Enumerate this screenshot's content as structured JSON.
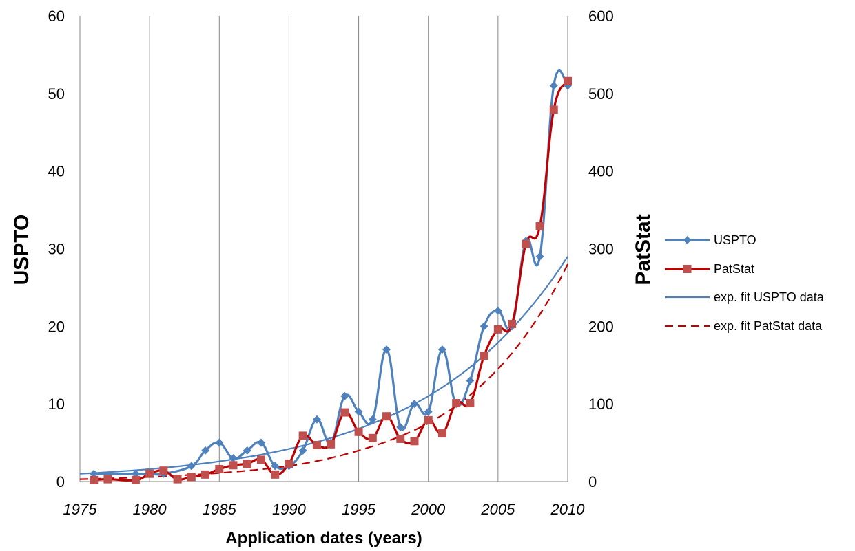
{
  "chart_data": {
    "type": "line",
    "xlabel": "Application dates (years)",
    "ylabel": "USPTO",
    "y2label": "PatStat",
    "xlim": [
      1975,
      2010
    ],
    "ylim": [
      0,
      60
    ],
    "y2lim": [
      0,
      600
    ],
    "x_ticks": [
      1975,
      1980,
      1985,
      1990,
      1995,
      2000,
      2005,
      2010
    ],
    "y_ticks": [
      0,
      10,
      20,
      30,
      40,
      50,
      60
    ],
    "y2_ticks": [
      0,
      100,
      200,
      300,
      400,
      500,
      600
    ],
    "grid": "vertical",
    "legend_position": "right",
    "series": [
      {
        "name": "USPTO",
        "axis": "left",
        "color": "#4F81BD",
        "marker": "diamond",
        "smooth": true,
        "x": [
          1976,
          1979,
          1980,
          1981,
          1983,
          1984,
          1985,
          1986,
          1987,
          1988,
          1989,
          1990,
          1991,
          1992,
          1993,
          1994,
          1995,
          1996,
          1997,
          1998,
          1999,
          2000,
          2001,
          2002,
          2003,
          2004,
          2005,
          2006,
          2007,
          2008,
          2009,
          2010
        ],
        "y": [
          1,
          1,
          1,
          1,
          2,
          4,
          5,
          3,
          4,
          5,
          2,
          2,
          4,
          8,
          5,
          11,
          9,
          8,
          17,
          7,
          10,
          9,
          17,
          10,
          13,
          20,
          22,
          20,
          31,
          29,
          51,
          51
        ]
      },
      {
        "name": "PatStat",
        "axis": "right",
        "color": "#C0504D",
        "line_color": "#C00000",
        "marker": "square",
        "smooth": true,
        "x": [
          1976,
          1977,
          1979,
          1980,
          1981,
          1982,
          1983,
          1984,
          1985,
          1986,
          1987,
          1988,
          1989,
          1990,
          1991,
          1992,
          1993,
          1994,
          1995,
          1996,
          1997,
          1998,
          1999,
          2000,
          2001,
          2002,
          2003,
          2004,
          2005,
          2006,
          2007,
          2008,
          2009,
          2010
        ],
        "y": [
          2,
          3,
          2,
          10,
          14,
          3,
          6,
          9,
          16,
          21,
          23,
          28,
          9,
          23,
          59,
          47,
          48,
          89,
          64,
          56,
          84,
          55,
          52,
          79,
          62,
          101,
          101,
          162,
          196,
          203,
          306,
          329,
          479,
          516
        ]
      },
      {
        "name": "exp. fit USPTO data",
        "axis": "left",
        "color": "#4F81BD",
        "style": "solid",
        "x": [
          1975,
          1980,
          1985,
          1990,
          1995,
          2000,
          2005,
          2010
        ],
        "y": [
          1.0,
          1.6,
          2.6,
          4.2,
          6.8,
          11.0,
          17.9,
          29.0
        ]
      },
      {
        "name": "exp. fit PatStat data",
        "axis": "right",
        "color": "#C00000",
        "style": "dashed",
        "x": [
          1975,
          1980,
          1985,
          1990,
          1995,
          2000,
          2005,
          2010
        ],
        "y": [
          3,
          6,
          11,
          20,
          40,
          75,
          145,
          280
        ]
      }
    ]
  }
}
